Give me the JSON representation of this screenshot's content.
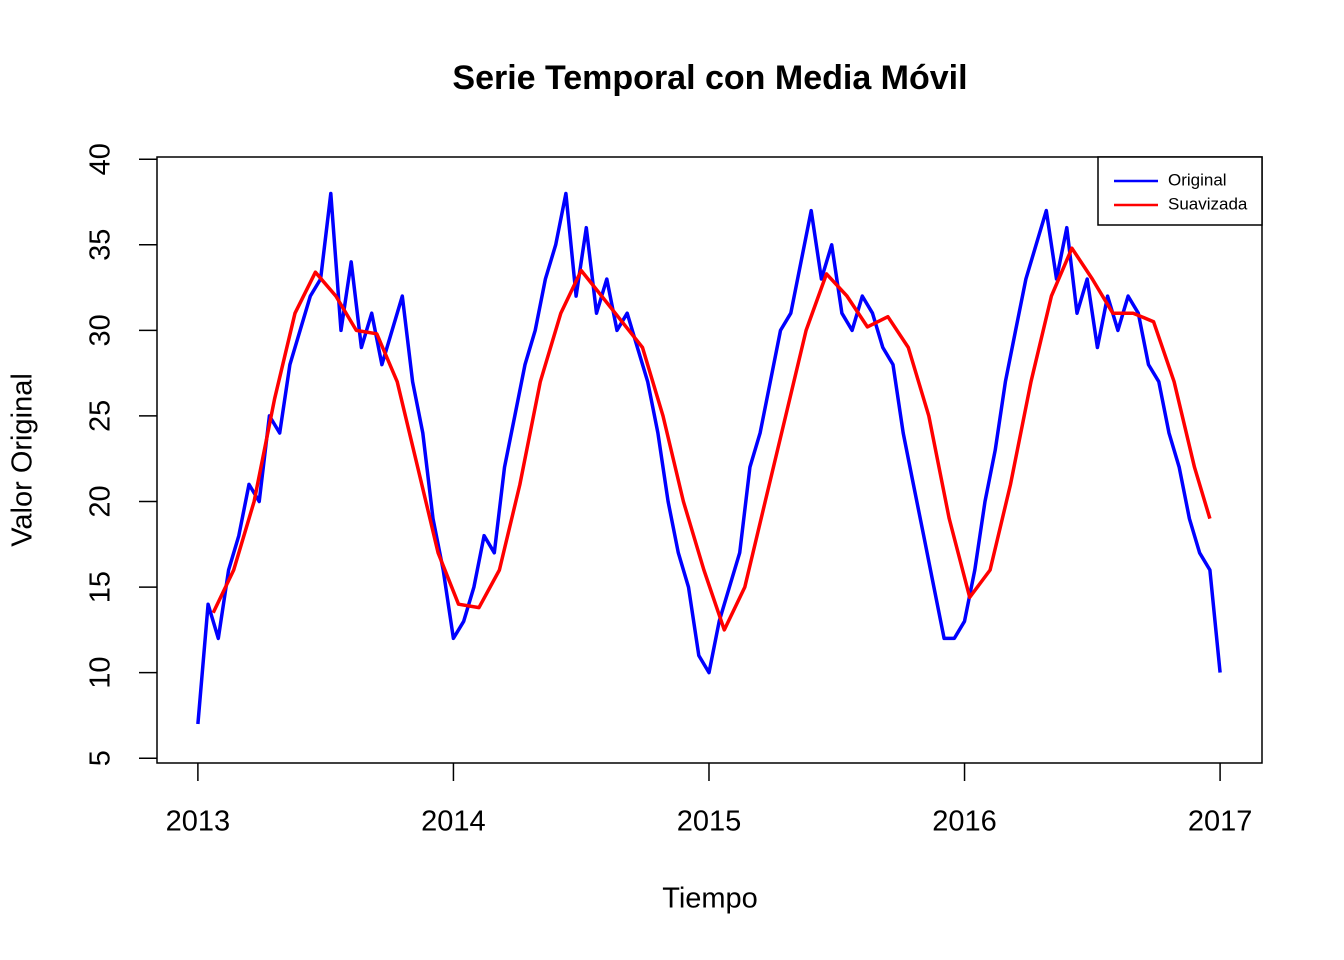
{
  "chart_data": {
    "type": "line",
    "title": "Serie Temporal con Media Móvil",
    "x_label": "Tiempo",
    "y_label": "Valor Original",
    "xlim": [
      2012.84,
      2017.164
    ],
    "ylim": [
      4.72,
      40.13
    ],
    "xticks": [
      2013,
      2014,
      2015,
      2016,
      2017
    ],
    "yticks": [
      5,
      10,
      15,
      20,
      25,
      30,
      35,
      40
    ],
    "legend": "top-right",
    "series": [
      {
        "name": "Original",
        "color": "#0000ff",
        "x": [
          2013,
          2013.04,
          2013.08,
          2013.12,
          2013.16,
          2013.2,
          2013.24,
          2013.28,
          2013.32,
          2013.36,
          2013.4,
          2013.44,
          2013.48,
          2013.52,
          2013.56,
          2013.6,
          2013.64,
          2013.68,
          2013.72,
          2013.76,
          2013.8,
          2013.84,
          2013.88,
          2013.92,
          2013.96,
          2014,
          2014.04,
          2014.08,
          2014.12,
          2014.16,
          2014.2,
          2014.24,
          2014.28,
          2014.32,
          2014.36,
          2014.4,
          2014.44,
          2014.48,
          2014.52,
          2014.56,
          2014.6,
          2014.64,
          2014.68,
          2014.72,
          2014.76,
          2014.8,
          2014.84,
          2014.88,
          2014.92,
          2014.96,
          2015,
          2015.04,
          2015.08,
          2015.12,
          2015.16,
          2015.2,
          2015.24,
          2015.28,
          2015.32,
          2015.36,
          2015.4,
          2015.44,
          2015.48,
          2015.52,
          2015.56,
          2015.6,
          2015.64,
          2015.68,
          2015.72,
          2015.76,
          2015.8,
          2015.84,
          2015.88,
          2015.92,
          2015.96,
          2016,
          2016.04,
          2016.08,
          2016.12,
          2016.16,
          2016.2,
          2016.24,
          2016.28,
          2016.32,
          2016.36,
          2016.4,
          2016.44,
          2016.48,
          2016.52,
          2016.56,
          2016.6,
          2016.64,
          2016.68,
          2016.72,
          2016.76,
          2016.8,
          2016.84,
          2016.88,
          2016.92,
          2016.96,
          2017
        ],
        "values": [
          7,
          14,
          12,
          16,
          18,
          21,
          20,
          25,
          24,
          28,
          30,
          32,
          33,
          38,
          30,
          34,
          29,
          31,
          28,
          30,
          32,
          27,
          24,
          19,
          16,
          12,
          13,
          15,
          18,
          17,
          22,
          25,
          28,
          30,
          33,
          35,
          38,
          32,
          36,
          31,
          33,
          30,
          31,
          29,
          27,
          24,
          20,
          17,
          15,
          11,
          10,
          13,
          15,
          17,
          22,
          24,
          27,
          30,
          31,
          34,
          37,
          33,
          35,
          31,
          30,
          32,
          31,
          29,
          28,
          24,
          21,
          18,
          15,
          12,
          12,
          13,
          16,
          20,
          23,
          27,
          30,
          33,
          35,
          37,
          33,
          36,
          31,
          33,
          29,
          32,
          30,
          32,
          31,
          28,
          27,
          24,
          22,
          19,
          17,
          16,
          10
        ]
      },
      {
        "name": "Suavizada",
        "color": "#ff0000",
        "x": [
          2013.06,
          2013.14,
          2013.22,
          2013.3,
          2013.38,
          2013.46,
          2013.54,
          2013.62,
          2013.7,
          2013.78,
          2013.86,
          2013.94,
          2014.02,
          2014.1,
          2014.18,
          2014.26,
          2014.34,
          2014.42,
          2014.5,
          2014.58,
          2014.66,
          2014.74,
          2014.82,
          2014.9,
          2014.98,
          2015.06,
          2015.14,
          2015.22,
          2015.3,
          2015.38,
          2015.46,
          2015.54,
          2015.62,
          2015.7,
          2015.78,
          2015.86,
          2015.94,
          2016.02,
          2016.1,
          2016.18,
          2016.26,
          2016.34,
          2016.42,
          2016.5,
          2016.58,
          2016.66,
          2016.74,
          2016.82,
          2016.9,
          2016.96
        ],
        "values": [
          13.5,
          16,
          20,
          26,
          31,
          33.4,
          32,
          30,
          29.8,
          27,
          22,
          17,
          14,
          13.8,
          16,
          21,
          27,
          31,
          33.5,
          32,
          30.5,
          29,
          25,
          20,
          16,
          12.5,
          15,
          20,
          25,
          30,
          33.3,
          32,
          30.2,
          30.8,
          29,
          25,
          19,
          14.4,
          16,
          21,
          27,
          32,
          34.8,
          33,
          31,
          31,
          30.5,
          27,
          22,
          19
        ]
      }
    ]
  }
}
